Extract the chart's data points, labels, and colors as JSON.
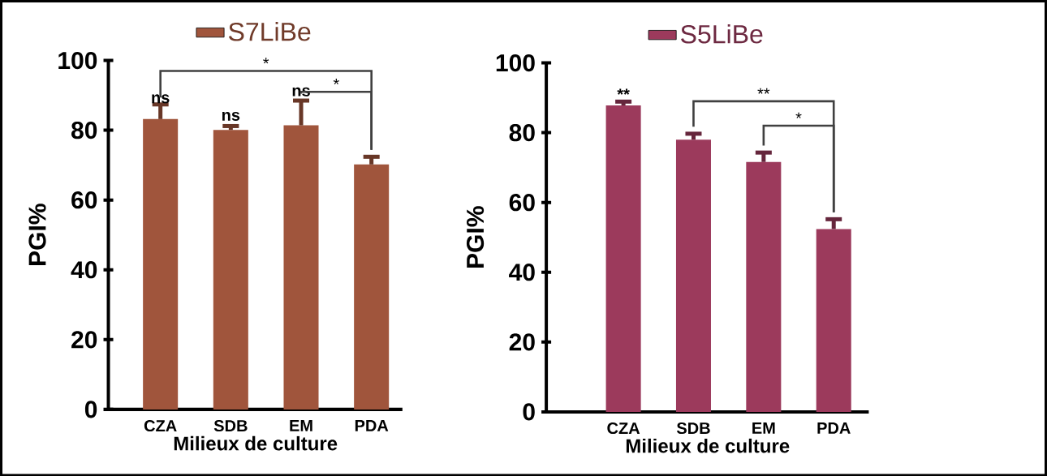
{
  "chart_data": [
    {
      "type": "bar",
      "categories": [
        "CZA",
        "SDB",
        "EM",
        "PDA"
      ],
      "xlabel": "Milieux de culture",
      "ylabel": "PGI%",
      "ylim": [
        0,
        100
      ],
      "yticks": [
        0,
        20,
        40,
        60,
        80,
        100
      ],
      "legend": "top",
      "series": [
        {
          "name": "S7LiBe",
          "color": "#a0553c",
          "values": [
            83.2,
            80.1,
            81.4,
            70.2
          ],
          "errors": [
            [
              83.2,
              87.4
            ],
            [
              80.1,
              81.2
            ],
            [
              81.4,
              88.5
            ],
            [
              70.2,
              72.4
            ]
          ]
        }
      ],
      "annotations": [
        "ns",
        "ns",
        "ns",
        "*",
        "*"
      ]
    },
    {
      "type": "bar",
      "categories": [
        "CZA",
        "SDB",
        "EM",
        "PDA"
      ],
      "xlabel": "Milieux de culture",
      "ylabel": "PGI%",
      "ylim": [
        0,
        100
      ],
      "yticks": [
        0,
        20,
        40,
        60,
        80,
        100
      ],
      "legend": "top",
      "series": [
        {
          "name": "S5LiBe",
          "color": "#9c3a5c",
          "values": [
            87.8,
            78.0,
            71.6,
            52.4
          ],
          "errors": [
            [
              87.8,
              88.9
            ],
            [
              78.0,
              79.7
            ],
            [
              71.6,
              74.3
            ],
            [
              52.4,
              55.2
            ]
          ]
        }
      ],
      "annotations": [
        "**",
        "**",
        "*"
      ]
    }
  ]
}
